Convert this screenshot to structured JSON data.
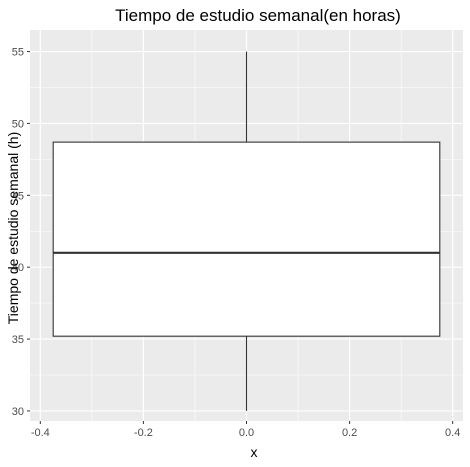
{
  "chart_data": {
    "type": "boxplot",
    "title": "Tiempo de estudio semanal(en horas)",
    "xlabel": "x",
    "ylabel": "Tiempo de estudio semanal (h)",
    "xlim": [
      -0.42,
      0.42
    ],
    "ylim": [
      29.3,
      56.5
    ],
    "x_ticks": [
      -0.4,
      -0.2,
      0.0,
      0.2,
      0.4
    ],
    "x_tick_labels": [
      "-0.4",
      "-0.2",
      "0.0",
      "0.2",
      "0.4"
    ],
    "y_ticks": [
      30,
      35,
      40,
      45,
      50,
      55
    ],
    "y_tick_labels": [
      "30",
      "35",
      "40",
      "45",
      "50",
      "55"
    ],
    "grid": true,
    "box": {
      "center": 0.0,
      "half_width": 0.375,
      "whisker_low": 30,
      "q1": 35.2,
      "median": 41.0,
      "q3": 48.7,
      "whisker_high": 55
    },
    "colors": {
      "panel_bg": "#ebebeb",
      "grid_major": "#ffffff",
      "box_fill": "#ffffff",
      "box_stroke": "#333333",
      "tick_color": "#333333"
    }
  }
}
